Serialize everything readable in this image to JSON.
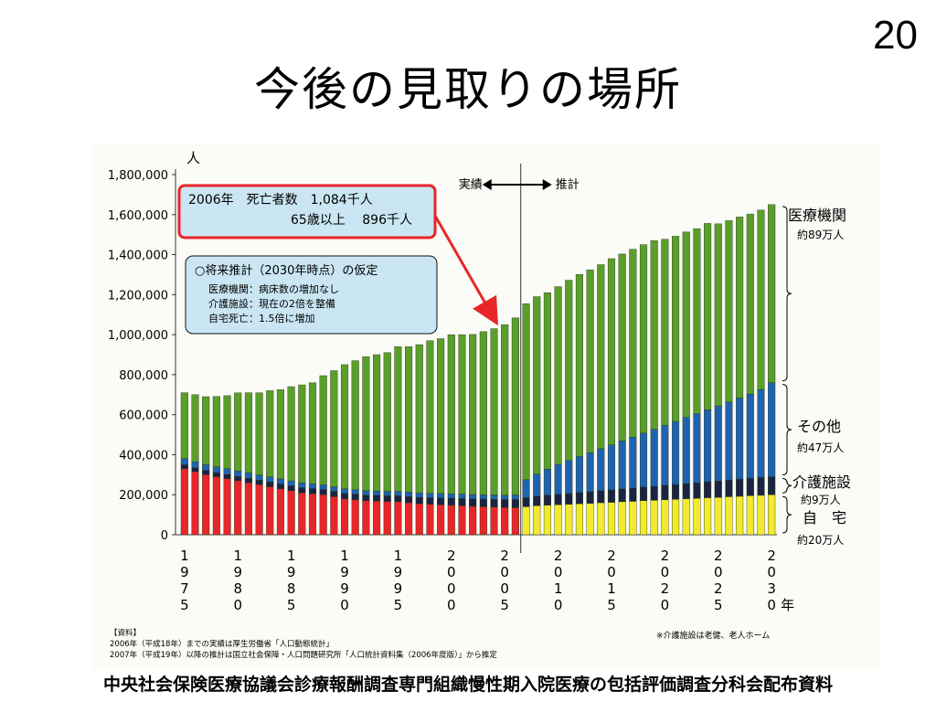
{
  "slide": {
    "number": "20",
    "title": "今後の見取りの場所",
    "footer": "中央社会保険医療協議会診療報酬調査専門組織慢性期入院医療の包括評価調査分科会配布資料"
  },
  "colors": {
    "home": "#e8262a",
    "home_forecast": "#f2ea2a",
    "care_facility": "#1a2442",
    "other": "#1e63b0",
    "hospital": "#5a9e2c",
    "callout_border": "#e8262a",
    "callout_fill": "#c9e6f2",
    "arrow": "#e8262a"
  },
  "chart_data": {
    "type": "bar",
    "stacked": true,
    "y_unit_label": "人",
    "ylim": [
      0,
      1800000
    ],
    "y_ticks": [
      "0",
      "200,000",
      "400,000",
      "600,000",
      "800,000",
      "1,000,000",
      "1,200,000",
      "1,400,000",
      "1,600,000",
      "1,800,000"
    ],
    "x_tick_labels": [
      {
        "year": 1975,
        "label": "1975"
      },
      {
        "year": 1980,
        "label": "1980"
      },
      {
        "year": 1985,
        "label": "1985"
      },
      {
        "year": 1990,
        "label": "1990"
      },
      {
        "year": 1995,
        "label": "1995"
      },
      {
        "year": 2000,
        "label": "2000"
      },
      {
        "year": 2005,
        "label": "2005"
      },
      {
        "year": 2010,
        "label": "2010"
      },
      {
        "year": 2015,
        "label": "2015"
      },
      {
        "year": 2020,
        "label": "2020"
      },
      {
        "year": 2025,
        "label": "2025"
      },
      {
        "year": 2030,
        "label": "2030年"
      }
    ],
    "years": [
      1975,
      1976,
      1977,
      1978,
      1979,
      1980,
      1981,
      1982,
      1983,
      1984,
      1985,
      1986,
      1987,
      1988,
      1989,
      1990,
      1991,
      1992,
      1993,
      1994,
      1995,
      1996,
      1997,
      1998,
      1999,
      2000,
      2001,
      2002,
      2003,
      2004,
      2005,
      2006,
      2007,
      2008,
      2009,
      2010,
      2011,
      2012,
      2013,
      2014,
      2015,
      2016,
      2017,
      2018,
      2019,
      2020,
      2021,
      2022,
      2023,
      2024,
      2025,
      2026,
      2027,
      2028,
      2029,
      2030
    ],
    "actual_last_year": 2006,
    "divider": {
      "actual_label": "実績",
      "forecast_label": "推計"
    },
    "series": [
      {
        "key": "home",
        "values": [
          330000,
          315000,
          300000,
          290000,
          280000,
          270000,
          260000,
          250000,
          240000,
          230000,
          220000,
          210000,
          205000,
          200000,
          190000,
          180000,
          175000,
          170000,
          168000,
          166000,
          165000,
          160000,
          155000,
          152000,
          150000,
          148000,
          145000,
          142000,
          140000,
          138000,
          136000,
          135000,
          140000,
          145000,
          148000,
          150000,
          152000,
          155000,
          157000,
          160000,
          162000,
          165000,
          167000,
          170000,
          172000,
          175000,
          177000,
          180000,
          182000,
          185000,
          187000,
          190000,
          192000,
          195000,
          197000,
          200000
        ]
      },
      {
        "key": "care_facility",
        "values": [
          20000,
          20000,
          21000,
          21000,
          22000,
          22000,
          23000,
          23000,
          24000,
          24000,
          25000,
          25000,
          26000,
          26000,
          27000,
          27000,
          28000,
          28000,
          29000,
          29000,
          30000,
          31000,
          32000,
          33000,
          34000,
          35000,
          36000,
          37000,
          38000,
          39000,
          40000,
          42000,
          45000,
          48000,
          50000,
          52000,
          54000,
          56000,
          58000,
          60000,
          62000,
          64000,
          66000,
          68000,
          70000,
          72000,
          74000,
          76000,
          78000,
          80000,
          82000,
          84000,
          86000,
          88000,
          89000,
          90000
        ]
      },
      {
        "key": "other",
        "values": [
          30000,
          30000,
          29000,
          28000,
          28000,
          27000,
          27000,
          26000,
          25000,
          25000,
          24000,
          24000,
          24000,
          23000,
          23000,
          23000,
          22000,
          22000,
          22000,
          22000,
          22000,
          22000,
          22000,
          22000,
          22000,
          22000,
          22000,
          22000,
          22000,
          22000,
          22000,
          22000,
          90000,
          110000,
          130000,
          150000,
          165000,
          180000,
          195000,
          210000,
          225000,
          240000,
          255000,
          270000,
          285000,
          300000,
          315000,
          330000,
          345000,
          360000,
          375000,
          390000,
          405000,
          420000,
          440000,
          470000
        ]
      },
      {
        "key": "hospital",
        "values": [
          330000,
          335000,
          340000,
          352000,
          365000,
          390000,
          400000,
          410000,
          431000,
          446000,
          471000,
          490000,
          505000,
          546000,
          580000,
          620000,
          645000,
          670000,
          681000,
          693000,
          723000,
          727000,
          741000,
          763000,
          774000,
          795000,
          797000,
          800000,
          815000,
          831000,
          852000,
          885000,
          880000,
          887000,
          882000,
          888000,
          901000,
          910000,
          914000,
          920000,
          931000,
          934000,
          939000,
          942000,
          943000,
          930000,
          926000,
          927000,
          925000,
          931000,
          910000,
          906000,
          905000,
          900000,
          897000,
          890000
        ]
      }
    ],
    "bracket_labels": [
      {
        "key": "hospital",
        "name": "医療機関",
        "note": "約89万人"
      },
      {
        "key": "other",
        "name": "その他",
        "note": "約47万人"
      },
      {
        "key": "care_facility",
        "name": "介護施設",
        "note": "約9万人"
      },
      {
        "key": "home",
        "name": "自　宅",
        "note": "約20万人"
      }
    ],
    "callout_2006": {
      "line1": "2006年　死亡者数　1,084千人",
      "line2": "65歳以上　 896千人"
    },
    "assumption_box": {
      "title": "○将来推計（2030年時点）の仮定",
      "lines": [
        "医療機関：病床数の増加なし",
        "介護施設：現在の2倍を整備",
        "自宅死亡：1.5倍に増加"
      ]
    },
    "sources": [
      "【資料】",
      "2006年（平成18年）までの実績は厚生労働省「人口動態統計」",
      "2007年（平成19年）以降の推計は国立社会保障・人口問題研究所「人口統計資料集（2006年度版）」から推定"
    ],
    "footnote": "※介護施設は老健、老人ホーム"
  }
}
